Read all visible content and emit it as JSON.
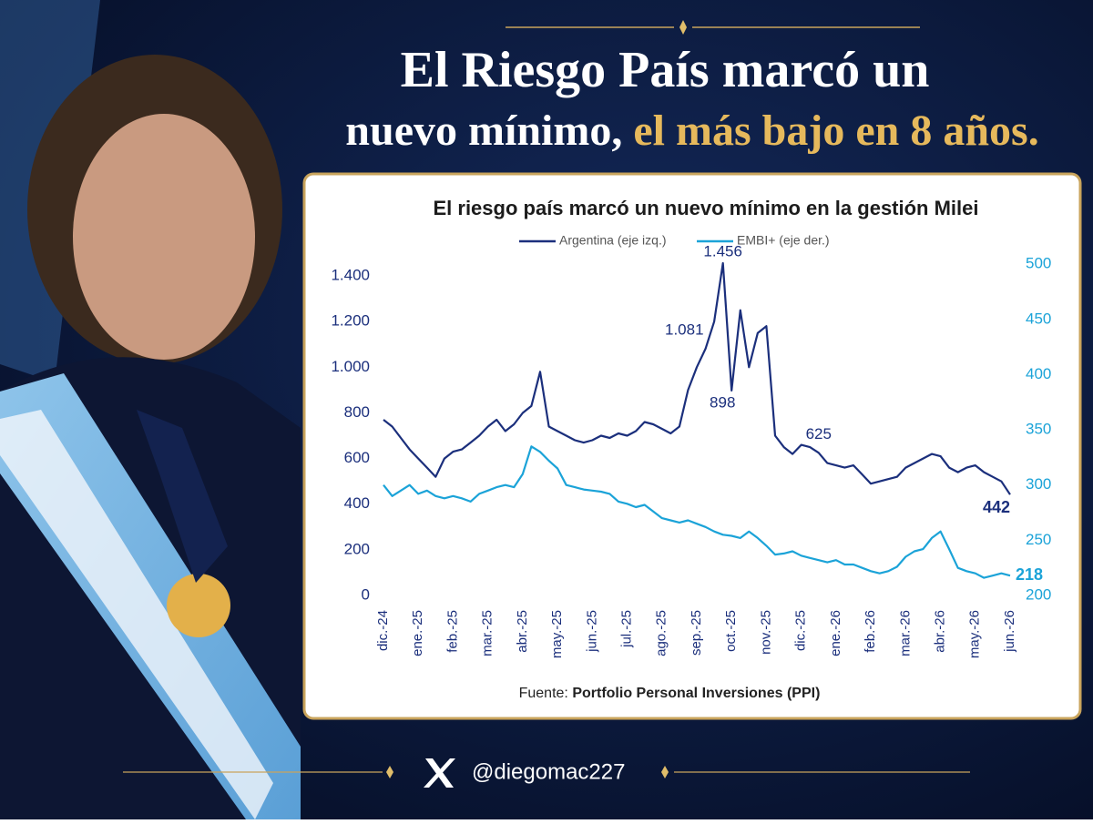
{
  "headline": {
    "line1": "El Riesgo País marcó un",
    "line2a": "nuevo mínimo,",
    "line2b": "el más bajo en 8 años."
  },
  "chart_data": {
    "type": "line",
    "title": "El riesgo país marcó un nuevo mínimo en la gestión Milei",
    "x": [
      0,
      0.25,
      0.5,
      0.75,
      1,
      1.25,
      1.5,
      1.75,
      2,
      2.25,
      2.5,
      2.75,
      3,
      3.25,
      3.5,
      3.75,
      4,
      4.25,
      4.5,
      4.75,
      5,
      5.25,
      5.5,
      5.75,
      6,
      6.25,
      6.5,
      6.75,
      7,
      7.25,
      7.5,
      7.75,
      8,
      8.25,
      8.5,
      8.75,
      9,
      9.25,
      9.5,
      9.75,
      10,
      10.25,
      10.5,
      10.75,
      11,
      11.25,
      11.5,
      11.75,
      12,
      12.25,
      12.5,
      12.75,
      13,
      13.25,
      13.5,
      13.75,
      14,
      14.25,
      14.5,
      14.75,
      15,
      15.25,
      15.5,
      15.75,
      16,
      16.25,
      16.5,
      16.75,
      17,
      17.25,
      17.5,
      17.75,
      18
    ],
    "xlim": [
      0,
      18
    ],
    "xticks": [
      {
        "value": 0,
        "label": "dic.-24"
      },
      {
        "value": 1,
        "label": "ene.-25"
      },
      {
        "value": 2,
        "label": "feb.-25"
      },
      {
        "value": 3,
        "label": "mar.-25"
      },
      {
        "value": 4,
        "label": "abr.-25"
      },
      {
        "value": 5,
        "label": "may.-25"
      },
      {
        "value": 6,
        "label": "jun.-25"
      },
      {
        "value": 7,
        "label": "jul.-25"
      },
      {
        "value": 8,
        "label": "ago.-25"
      },
      {
        "value": 9,
        "label": "sep.-25"
      },
      {
        "value": 10,
        "label": "oct.-25"
      },
      {
        "value": 11,
        "label": "nov.-25"
      },
      {
        "value": 12,
        "label": "dic.-25"
      },
      {
        "value": 13,
        "label": "ene.-26"
      },
      {
        "value": 14,
        "label": "feb.-26"
      },
      {
        "value": 15,
        "label": "mar.-26"
      },
      {
        "value": 16,
        "label": "abr.-26"
      },
      {
        "value": 17,
        "label": "may.-26"
      },
      {
        "value": 18,
        "label": "jun.-26"
      }
    ],
    "ylim": [
      0,
      1500
    ],
    "yticks": [
      0,
      200,
      400,
      600,
      800,
      {
        "value": 1000,
        "label": "1.000"
      },
      {
        "value": 1200,
        "label": "1.200"
      },
      {
        "value": 1400,
        "label": "1.400"
      }
    ],
    "y2lim": [
      200,
      510
    ],
    "y2ticks": [
      200,
      250,
      300,
      350,
      400,
      450,
      500
    ],
    "series": [
      {
        "name": "Argentina (eje izq.)",
        "color": "#1b2f7c",
        "values": [
          770,
          740,
          690,
          640,
          600,
          560,
          520,
          600,
          630,
          640,
          670,
          700,
          740,
          770,
          720,
          750,
          800,
          830,
          980,
          740,
          720,
          700,
          680,
          670,
          680,
          700,
          690,
          710,
          700,
          720,
          760,
          750,
          730,
          710,
          740,
          900,
          1000,
          1081,
          1200,
          1456,
          898,
          1250,
          1000,
          1150,
          1180,
          700,
          650,
          620,
          660,
          650,
          625,
          580,
          570,
          560,
          570,
          530,
          490,
          500,
          510,
          520,
          560,
          580,
          600,
          620,
          610,
          560,
          540,
          560,
          570,
          540,
          520,
          500,
          442
        ]
      },
      {
        "name": "EMBI+ (eje der.)",
        "color": "#1ba3d8",
        "axis": "y2",
        "values": [
          300,
          290,
          295,
          300,
          292,
          295,
          290,
          288,
          290,
          288,
          285,
          292,
          295,
          298,
          300,
          298,
          310,
          335,
          330,
          322,
          315,
          300,
          298,
          296,
          295,
          294,
          292,
          285,
          283,
          280,
          282,
          276,
          270,
          268,
          266,
          268,
          265,
          262,
          258,
          255,
          254,
          252,
          258,
          252,
          245,
          237,
          238,
          240,
          236,
          234,
          232,
          230,
          232,
          228,
          228,
          225,
          222,
          220,
          222,
          226,
          235,
          240,
          242,
          252,
          258,
          242,
          225,
          222,
          220,
          216,
          218,
          220,
          218
        ]
      }
    ],
    "annotations": [
      {
        "label": "1.456",
        "x": 9.75,
        "value": 1456
      },
      {
        "label": "1.081",
        "x": 9.25,
        "value": 1081
      },
      {
        "label": "898",
        "x": 10,
        "value": 898
      },
      {
        "label": "625",
        "x": 12.5,
        "value": 625
      },
      {
        "label": "442",
        "x": 18,
        "value": 442
      },
      {
        "label": "218",
        "x": 18,
        "value": 218,
        "axis": "y2"
      }
    ],
    "source_prefix": "Fuente:",
    "source": "Portfolio Personal Inversiones (PPI)"
  },
  "footer": {
    "handle": "@diegomac227"
  }
}
